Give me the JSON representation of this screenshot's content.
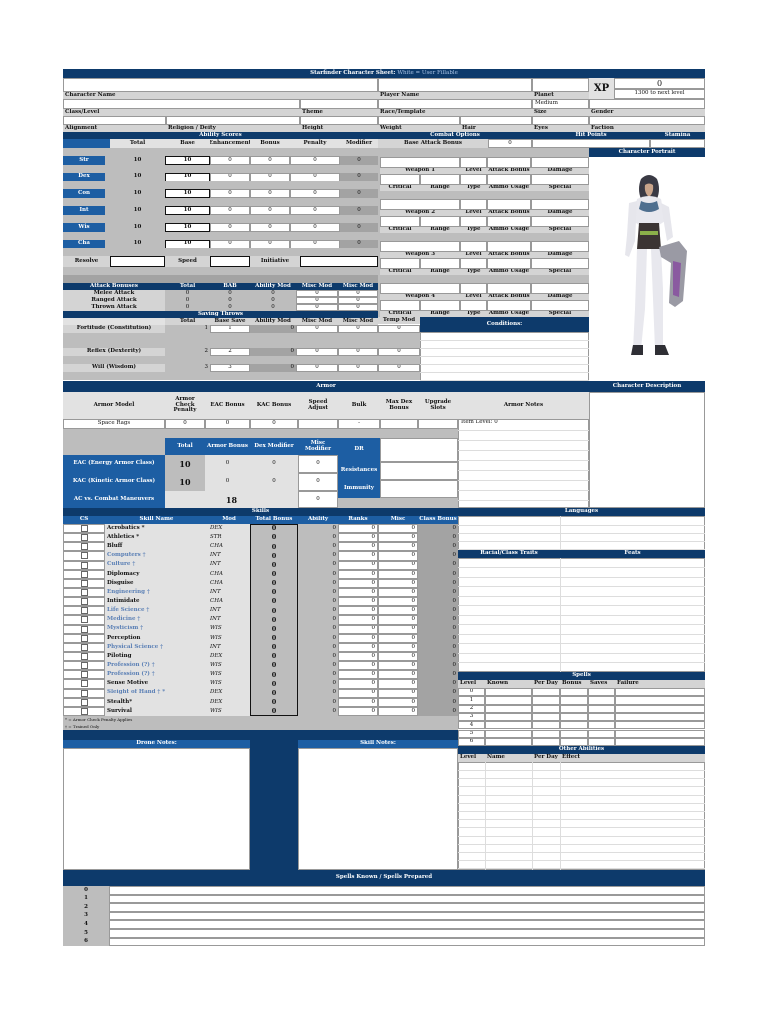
{
  "title": {
    "main": "Starfinder Character Sheet:",
    "note": "White = User Fillable"
  },
  "header": {
    "character_name": "Character Name",
    "player_name": "Player Name",
    "planet": "Planet",
    "class_level": "Class/Level",
    "theme": "Theme",
    "race_template": "Race/Template",
    "size": "Size",
    "size_value": "Medium",
    "gender": "Gender",
    "alignment": "Alignment",
    "religion": "Religion / Deity",
    "height": "Height",
    "weight": "Weight",
    "hair": "Hair",
    "eyes": "Eyes",
    "faction": "Faction"
  },
  "xp": {
    "label": "XP",
    "value": "0",
    "next": "1300 to next level"
  },
  "sections": {
    "ability_scores": "Ability Scores",
    "combat_options": "Combat Options",
    "hit_points": "Hit Points",
    "stamina": "Stamina",
    "character_portrait": "Character Portrait",
    "conditions": "Conditions:",
    "armor": "Armor",
    "character_description": "Character Description",
    "skills": "Skills",
    "languages": "Languages",
    "racial_traits": "Racial/Class Traits",
    "feats": "Feats",
    "spells": "Spells",
    "other_abilities": "Other Abilities",
    "drone_notes": "Drone Notes:",
    "skill_notes": "Skill Notes:",
    "spells_known": "Spells Known / Spells Prepared"
  },
  "abilities": {
    "columns": [
      "Total",
      "Base",
      "Enhancement",
      "Bonus",
      "Penalty",
      "Modifier"
    ],
    "rows": [
      {
        "name": "Str",
        "total": "10",
        "base": "10",
        "enh": "0",
        "bonus": "0",
        "penalty": "0",
        "mod": "0"
      },
      {
        "name": "Dex",
        "total": "10",
        "base": "10",
        "enh": "0",
        "bonus": "0",
        "penalty": "0",
        "mod": "0"
      },
      {
        "name": "Con",
        "total": "10",
        "base": "10",
        "enh": "0",
        "bonus": "0",
        "penalty": "0",
        "mod": "0"
      },
      {
        "name": "Int",
        "total": "10",
        "base": "10",
        "enh": "0",
        "bonus": "0",
        "penalty": "0",
        "mod": "0"
      },
      {
        "name": "Wis",
        "total": "10",
        "base": "10",
        "enh": "0",
        "bonus": "0",
        "penalty": "0",
        "mod": "0"
      },
      {
        "name": "Cha",
        "total": "10",
        "base": "10",
        "enh": "0",
        "bonus": "0",
        "penalty": "0",
        "mod": "0"
      }
    ],
    "resolve": "Resolve",
    "speed": "Speed",
    "initiative": "Initiative"
  },
  "combat": {
    "bab_label": "Base Attack Bonus",
    "bab_value": "0",
    "weapon_row": [
      "Level",
      "Attack Bonus",
      "Damage"
    ],
    "detail_row": [
      "Critical",
      "Range",
      "Type",
      "Ammo Usage",
      "Special"
    ],
    "weapons": [
      "Weapon 1",
      "Weapon 2",
      "Weapon 3",
      "Weapon 4"
    ]
  },
  "attack": {
    "columns": [
      "Attack Bonuses",
      "Total",
      "BAB",
      "Ability Mod",
      "Misc Mod",
      "Misc Mod"
    ],
    "rows": [
      {
        "name": "Melee Attack",
        "vals": [
          "0",
          "0",
          "0",
          "0",
          "0"
        ]
      },
      {
        "name": "Ranged Attack",
        "vals": [
          "0",
          "0",
          "0",
          "0",
          "0"
        ]
      },
      {
        "name": "Thrown Attack",
        "vals": [
          "0",
          "0",
          "0",
          "0",
          "0"
        ]
      }
    ]
  },
  "saves": {
    "title": "Saving Throws",
    "columns": [
      "Total",
      "Base Save",
      "Ability Mod",
      "Misc Mod",
      "Misc Mod",
      "Temp Mod"
    ],
    "rows": [
      {
        "name": "Fortitude (Constitution)",
        "vals": [
          "1",
          "1",
          "0",
          "0",
          "0",
          "0"
        ]
      },
      {
        "name": "Reflex (Dexterity)",
        "vals": [
          "2",
          "2",
          "0",
          "0",
          "0",
          "0"
        ]
      },
      {
        "name": "Will (Wisdom)",
        "vals": [
          "3",
          "3",
          "0",
          "0",
          "0",
          "0"
        ]
      }
    ]
  },
  "armor": {
    "columns": [
      "Armor Model",
      "Armor Check Penalty",
      "EAC Bonus",
      "KAC Bonus",
      "Speed Adjust",
      "Bulk",
      "Max Dex Bonus",
      "Upgrade Slots",
      "Armor Notes"
    ],
    "row": [
      "Space Rags",
      "0",
      "0",
      "0",
      "",
      "-",
      "",
      ""
    ],
    "notes": "Item Level: 0"
  },
  "ac": {
    "columns": [
      "Total",
      "Armor Bonus",
      "Dex Modifier",
      "Misc Modifier"
    ],
    "eac": {
      "label": "EAC (Energy Armor Class)",
      "total": "10",
      "armor": "0",
      "dex": "0",
      "misc": "0"
    },
    "kac": {
      "label": "KAC (Kinetic Armor Class)",
      "total": "10",
      "armor": "0",
      "dex": "0",
      "misc": "0"
    },
    "cm": {
      "label": "AC vs. Combat Maneuvers",
      "total": "18",
      "misc": "0"
    },
    "dr": "DR",
    "resistances": "Resistances",
    "immunity": "Immunity"
  },
  "skills": {
    "columns": [
      "CS",
      "Skill Name",
      "Mod",
      "Total Bonus",
      "Ability",
      "Ranks",
      "Misc",
      "Class Bonus"
    ],
    "rows": [
      {
        "name": "Acrobatics *",
        "mod": "DEX",
        "trained": false,
        "total": "0",
        "ability": "0",
        "ranks": "0",
        "misc": "0",
        "cls": "0"
      },
      {
        "name": "Athletics *",
        "mod": "STR",
        "trained": false,
        "total": "0",
        "ability": "0",
        "ranks": "0",
        "misc": "0",
        "cls": "0"
      },
      {
        "name": "Bluff",
        "mod": "CHA",
        "trained": false,
        "total": "0",
        "ability": "0",
        "ranks": "0",
        "misc": "0",
        "cls": "0"
      },
      {
        "name": "Computers †",
        "mod": "INT",
        "trained": true,
        "total": "0",
        "ability": "0",
        "ranks": "0",
        "misc": "0",
        "cls": "0"
      },
      {
        "name": "Culture †",
        "mod": "INT",
        "trained": true,
        "total": "0",
        "ability": "0",
        "ranks": "0",
        "misc": "0",
        "cls": "0"
      },
      {
        "name": "Diplomacy",
        "mod": "CHA",
        "trained": false,
        "total": "0",
        "ability": "0",
        "ranks": "0",
        "misc": "0",
        "cls": "0"
      },
      {
        "name": "Disguise",
        "mod": "CHA",
        "trained": false,
        "total": "0",
        "ability": "0",
        "ranks": "0",
        "misc": "0",
        "cls": "0"
      },
      {
        "name": "Engineering †",
        "mod": "INT",
        "trained": true,
        "total": "0",
        "ability": "0",
        "ranks": "0",
        "misc": "0",
        "cls": "0"
      },
      {
        "name": "Intimidate",
        "mod": "CHA",
        "trained": false,
        "total": "0",
        "ability": "0",
        "ranks": "0",
        "misc": "0",
        "cls": "0"
      },
      {
        "name": "Life Science †",
        "mod": "INT",
        "trained": true,
        "total": "0",
        "ability": "0",
        "ranks": "0",
        "misc": "0",
        "cls": "0"
      },
      {
        "name": "Medicine †",
        "mod": "INT",
        "trained": true,
        "total": "0",
        "ability": "0",
        "ranks": "0",
        "misc": "0",
        "cls": "0"
      },
      {
        "name": "Mysticism †",
        "mod": "WIS",
        "trained": true,
        "total": "0",
        "ability": "0",
        "ranks": "0",
        "misc": "0",
        "cls": "0"
      },
      {
        "name": "Perception",
        "mod": "WIS",
        "trained": false,
        "total": "0",
        "ability": "0",
        "ranks": "0",
        "misc": "0",
        "cls": "0"
      },
      {
        "name": "Physical Science †",
        "mod": "INT",
        "trained": true,
        "total": "0",
        "ability": "0",
        "ranks": "0",
        "misc": "0",
        "cls": "0"
      },
      {
        "name": "Piloting",
        "mod": "DEX",
        "trained": false,
        "total": "0",
        "ability": "0",
        "ranks": "0",
        "misc": "0",
        "cls": "0"
      },
      {
        "name": "Profession (?) †",
        "mod": "WIS",
        "trained": true,
        "total": "0",
        "ability": "0",
        "ranks": "0",
        "misc": "0",
        "cls": "0"
      },
      {
        "name": "Profession (?) †",
        "mod": "WIS",
        "trained": true,
        "total": "0",
        "ability": "0",
        "ranks": "0",
        "misc": "0",
        "cls": "0"
      },
      {
        "name": "Sense Motive",
        "mod": "WIS",
        "trained": false,
        "total": "0",
        "ability": "0",
        "ranks": "0",
        "misc": "0",
        "cls": "0"
      },
      {
        "name": "Sleight of Hand † *",
        "mod": "DEX",
        "trained": true,
        "total": "0",
        "ability": "0",
        "ranks": "0",
        "misc": "0",
        "cls": "0"
      },
      {
        "name": "Stealth*",
        "mod": "DEX",
        "trained": false,
        "total": "0",
        "ability": "0",
        "ranks": "0",
        "misc": "0",
        "cls": "0"
      },
      {
        "name": "Survival",
        "mod": "WIS",
        "trained": false,
        "total": "0",
        "ability": "0",
        "ranks": "0",
        "misc": "0",
        "cls": "0"
      }
    ],
    "footnotes": [
      "* = Armor Check Penalty Applies",
      "† = Trained Only"
    ]
  },
  "spells": {
    "columns": [
      "Level",
      "Known",
      "Per Day",
      "Bonus",
      "Saves",
      "Failure"
    ],
    "levels": [
      "0",
      "1",
      "2",
      "3",
      "4",
      "5",
      "6"
    ]
  },
  "other_abilities": {
    "columns": [
      "Level",
      "Name",
      "Per Day",
      "Effect"
    ]
  },
  "spells_known": {
    "levels": [
      "0",
      "1",
      "2",
      "3",
      "4",
      "5",
      "6"
    ]
  },
  "colors": {
    "navy": "#0d3a6b",
    "blue": "#1d5ea3",
    "gray": "#bdbdbd",
    "trained_text": "#5a7fb5"
  }
}
